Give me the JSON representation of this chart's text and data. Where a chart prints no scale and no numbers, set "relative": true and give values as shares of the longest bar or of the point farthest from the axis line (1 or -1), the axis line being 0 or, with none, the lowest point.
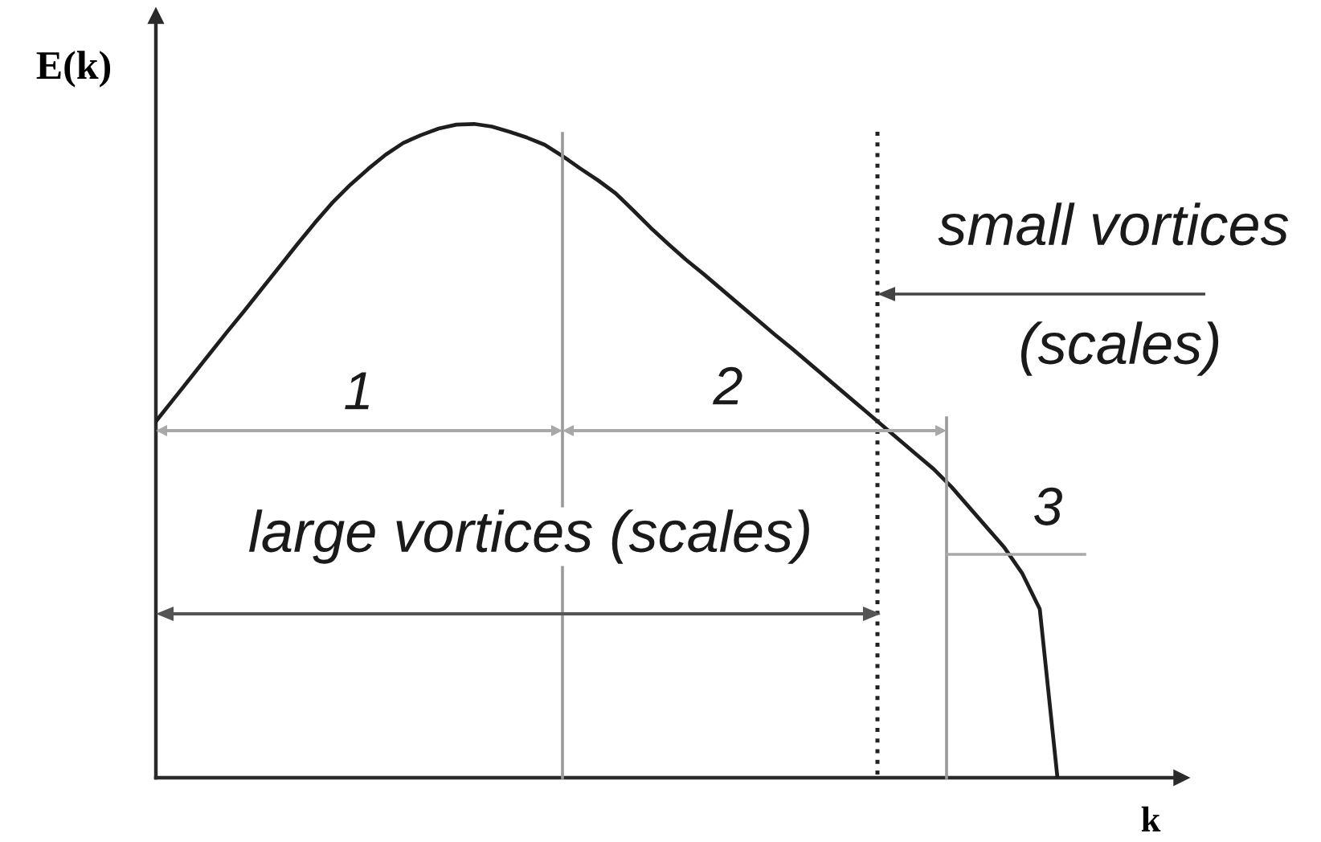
{
  "chart_data": {
    "type": "line",
    "xlabel": "k",
    "ylabel": "E(k)",
    "relative": true,
    "tick_labels": false,
    "categories": [
      null,
      null,
      null,
      null,
      null,
      null,
      null,
      null,
      null,
      null,
      null,
      null,
      null,
      null,
      null,
      null,
      null,
      null,
      null,
      null,
      null,
      null,
      null,
      null,
      null,
      null,
      null,
      null,
      null,
      null,
      null,
      null,
      null,
      null,
      null,
      null,
      null,
      null,
      null,
      null,
      null,
      null,
      null,
      null,
      null,
      null,
      null,
      null,
      null,
      null,
      null,
      null,
      null,
      null,
      null,
      null,
      null,
      null,
      null
    ],
    "series": [
      {
        "color": "#1e1e1e",
        "values": [
          0.545,
          0.579,
          0.613,
          0.647,
          0.681,
          0.714,
          0.748,
          0.782,
          0.816,
          0.849,
          0.88,
          0.907,
          0.931,
          0.953,
          0.971,
          0.983,
          0.993,
          0.999,
          1.0,
          0.996,
          0.988,
          0.979,
          0.968,
          0.951,
          0.932,
          0.914,
          0.894,
          0.868,
          0.841,
          0.816,
          0.792,
          0.77,
          0.747,
          0.724,
          0.701,
          0.678,
          0.656,
          0.633,
          0.61,
          0.587,
          0.564,
          0.541,
          0.518,
          0.495,
          0.472,
          0.445,
          0.414,
          0.383,
          0.352,
          0.313,
          0.258,
          0,
          null,
          null,
          null,
          null,
          null,
          null,
          null
        ]
      }
    ],
    "annotations": [
      "1",
      "2",
      "3",
      "large vortices (scales)",
      "small vortices",
      "(scales)"
    ]
  }
}
